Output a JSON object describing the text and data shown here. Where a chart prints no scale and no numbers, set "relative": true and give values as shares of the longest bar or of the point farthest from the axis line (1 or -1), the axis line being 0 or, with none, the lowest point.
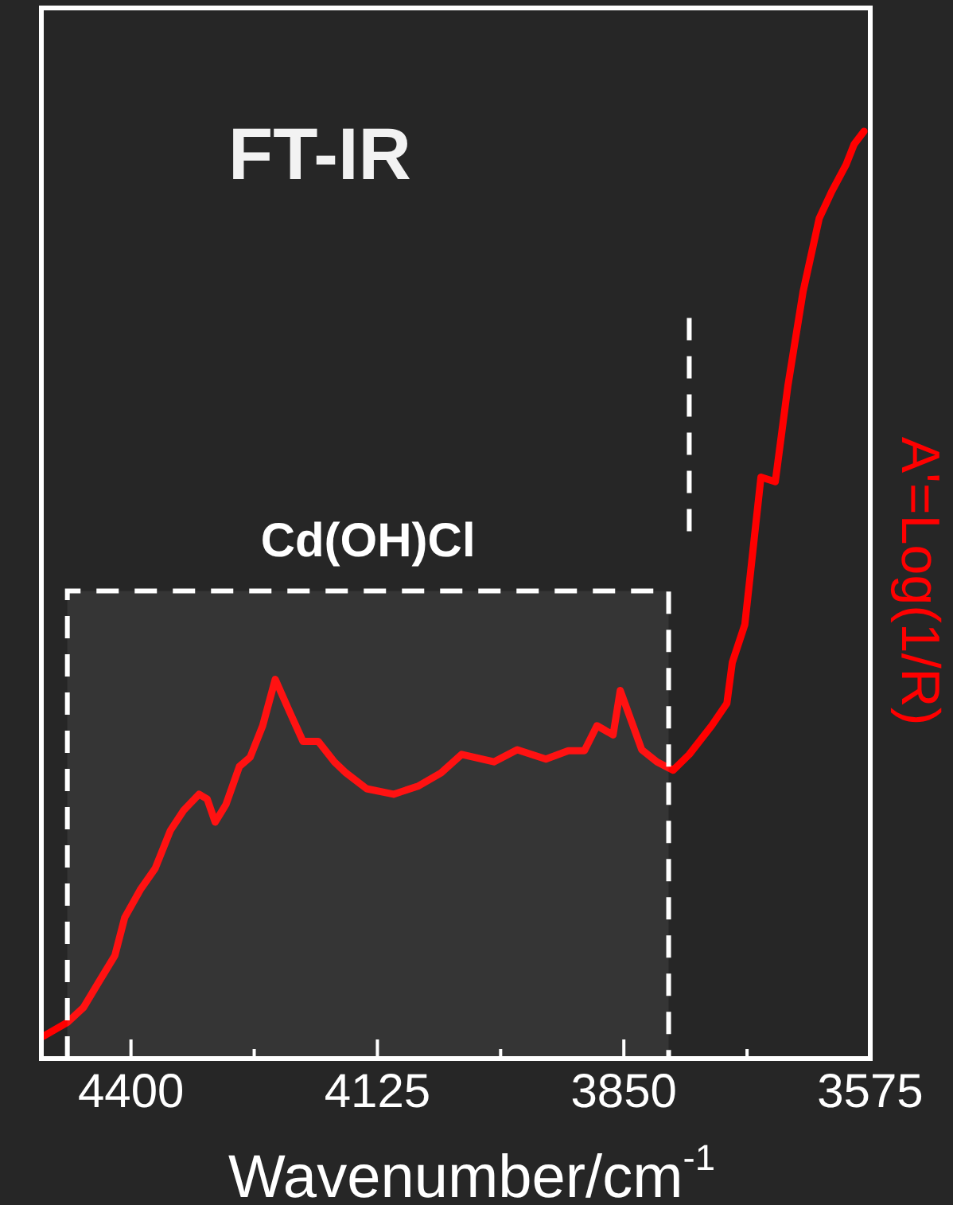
{
  "chart_data": {
    "type": "line",
    "title": "FT-IR",
    "xlabel": "Wavenumber/cm$^{-1}$",
    "ylabel": "A'=Log(1/R)",
    "relative": true,
    "xlim": [
      4500,
      3575
    ],
    "xticks": [
      4400,
      {
        "value": 4262.5,
        "label": null
      },
      4125,
      {
        "value": 3987.5,
        "label": null
      },
      3850,
      {
        "value": 3712.5,
        "label": null
      },
      3575
    ],
    "tick_labels": "x",
    "grid": false,
    "legend": false,
    "marker": "none",
    "line_style": "solid",
    "bands": [
      {
        "axis": "x",
        "from": 4471,
        "to": 3800,
        "label": "Cd(OH)Cl",
        "color": "#ffffff"
      }
    ],
    "ref_lines": [
      {
        "axis": "x",
        "value": 3777,
        "color": "#ffffff",
        "line_style": "dashed"
      }
    ],
    "series": [
      {
        "color": "#ff0000",
        "x": [
          4498,
          4471,
          4453,
          4435,
          4418,
          4407,
          4389,
          4373,
          4356,
          4341,
          4324,
          4315,
          4306,
          4294,
          4279,
          4267,
          4253,
          4239,
          4223,
          4208,
          4191,
          4173,
          4160,
          4137,
          4107,
          4079,
          4054,
          4031,
          3995,
          3969,
          3937,
          3912,
          3894,
          3880,
          3862,
          3854,
          3830,
          3813,
          3795,
          3777,
          3752,
          3735,
          3729,
          3715,
          3697,
          3681,
          3667,
          3650,
          3632,
          3618,
          3602,
          3593,
          3582
        ],
        "values": [
          0.024,
          0.039,
          0.055,
          0.084,
          0.111,
          0.152,
          0.183,
          0.205,
          0.246,
          0.268,
          0.285,
          0.28,
          0.255,
          0.274,
          0.315,
          0.325,
          0.359,
          0.409,
          0.374,
          0.342,
          0.342,
          0.32,
          0.308,
          0.291,
          0.285,
          0.294,
          0.308,
          0.328,
          0.32,
          0.333,
          0.323,
          0.332,
          0.332,
          0.359,
          0.349,
          0.397,
          0.333,
          0.32,
          0.311,
          0.328,
          0.359,
          0.383,
          0.427,
          0.468,
          0.627,
          0.622,
          0.725,
          0.827,
          0.906,
          0.935,
          0.964,
          0.986,
          1
        ]
      }
    ]
  }
}
